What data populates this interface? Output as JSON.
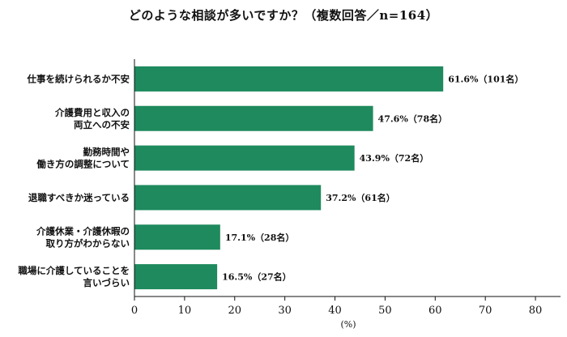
{
  "chart_data": {
    "type": "bar",
    "orientation": "horizontal",
    "title": "どのような相談が多いですか？（複数回答／n=164）",
    "xlabel": "(%)",
    "xlim": [
      0,
      85
    ],
    "xticks": [
      0,
      10,
      20,
      30,
      40,
      50,
      60,
      70,
      80
    ],
    "grid": false,
    "bar_color": "#1e8a5e",
    "categories": [
      [
        "仕事を続けられるか不安"
      ],
      [
        "介護費用と収入の",
        "両立への不安"
      ],
      [
        "勤務時間や",
        "働き方の調整について"
      ],
      [
        "退職すべきか迷っている"
      ],
      [
        "介護休業・介護休暇の",
        "取り方がわからない"
      ],
      [
        "職場に介護していることを",
        "言いづらい"
      ]
    ],
    "values": [
      61.6,
      47.6,
      43.9,
      37.2,
      17.1,
      16.5
    ],
    "data_labels": [
      "61.6%（101名）",
      "47.6%（78名）",
      "43.9%（72名）",
      "37.2%（61名）",
      "17.1%（28名）",
      "16.5%（27名）"
    ]
  }
}
